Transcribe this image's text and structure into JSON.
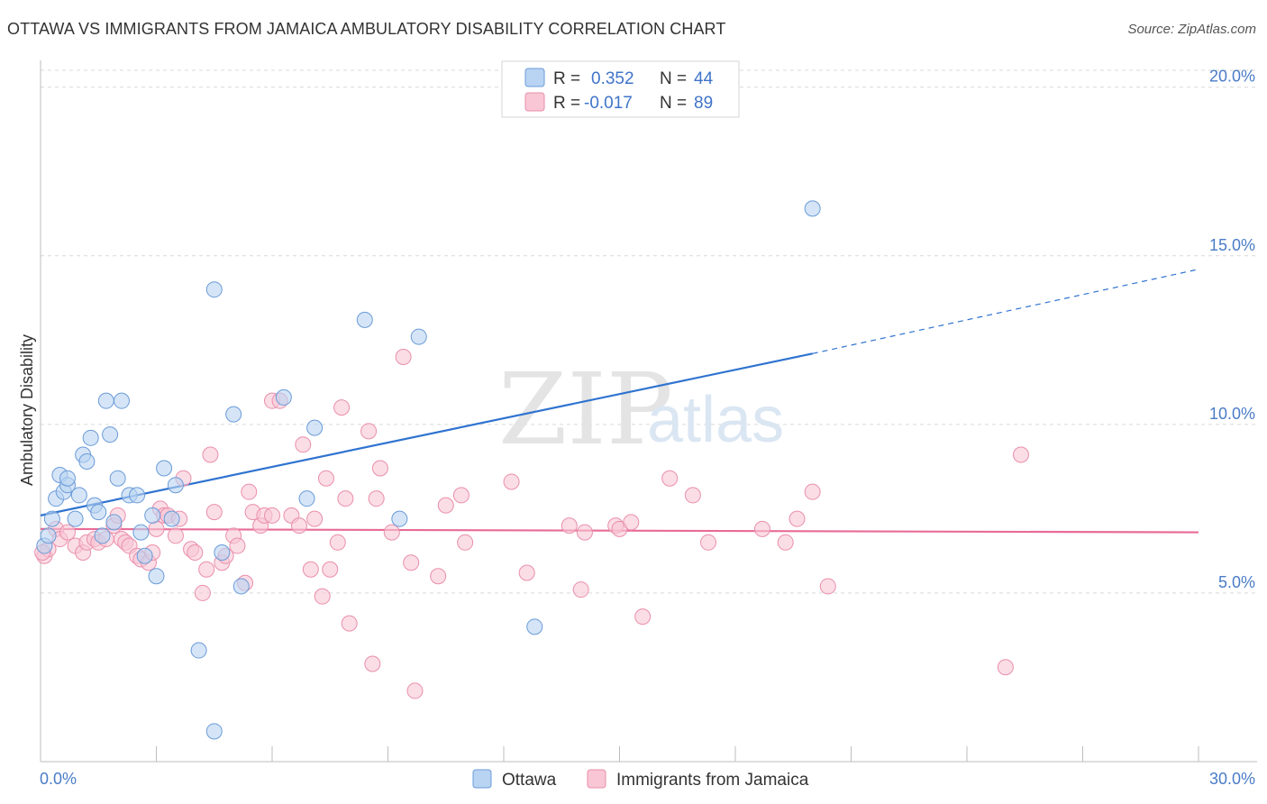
{
  "title": "OTTAWA VS IMMIGRANTS FROM JAMAICA AMBULATORY DISABILITY CORRELATION CHART",
  "source": "Source: ZipAtlas.com",
  "watermark": {
    "zip": "ZIP",
    "atlas": "atlas"
  },
  "colors": {
    "ottawa_fill": "#b9d3f2",
    "ottawa_stroke": "#6a9bd8",
    "ottawa_line": "#2f73d0",
    "jamaica_fill": "#f9c6d5",
    "jamaica_stroke": "#e98fab",
    "jamaica_line": "#e86b98",
    "grid": "#d9d9d9",
    "tick_text": "#4a7cc7"
  },
  "legend": {
    "rows": [
      {
        "r_label": "R =",
        "r_value": "0.352",
        "n_label": "N =",
        "n_value": "44"
      },
      {
        "r_label": "R =",
        "r_value": "-0.017",
        "n_label": "N =",
        "n_value": "89"
      }
    ]
  },
  "chart_data": {
    "type": "scatter",
    "title": "OTTAWA VS IMMIGRANTS FROM JAMAICA AMBULATORY DISABILITY CORRELATION CHART",
    "xlabel": "",
    "ylabel": "Ambulatory Disability",
    "xlim": [
      0,
      30
    ],
    "ylim": [
      0,
      20.5
    ],
    "x_tick_labels": [
      "0.0%",
      "30.0%"
    ],
    "y_ticks": [
      5,
      10,
      15,
      20
    ],
    "y_tick_labels": [
      "5.0%",
      "10.0%",
      "15.0%",
      "20.0%"
    ],
    "grid": true,
    "legend_position": "top-center",
    "series": [
      {
        "name": "Ottawa",
        "r": 0.352,
        "n": 44,
        "trend": {
          "x0": 0,
          "y0": 7.3,
          "x1": 20,
          "y1": 12.1,
          "dashed_to_x": 30,
          "dashed_to_y": 14.6
        },
        "points": [
          [
            0.1,
            6.4
          ],
          [
            0.3,
            7.2
          ],
          [
            0.4,
            7.8
          ],
          [
            0.5,
            8.5
          ],
          [
            0.6,
            8.0
          ],
          [
            0.7,
            8.2
          ],
          [
            0.7,
            8.4
          ],
          [
            1.0,
            7.9
          ],
          [
            0.9,
            7.2
          ],
          [
            1.1,
            9.1
          ],
          [
            1.2,
            8.9
          ],
          [
            1.3,
            9.6
          ],
          [
            1.4,
            7.6
          ],
          [
            1.5,
            7.4
          ],
          [
            1.6,
            6.7
          ],
          [
            1.7,
            10.7
          ],
          [
            1.8,
            9.7
          ],
          [
            1.9,
            7.1
          ],
          [
            2.0,
            8.4
          ],
          [
            2.1,
            10.7
          ],
          [
            2.3,
            7.9
          ],
          [
            2.5,
            7.9
          ],
          [
            2.6,
            6.8
          ],
          [
            2.7,
            6.1
          ],
          [
            2.9,
            7.3
          ],
          [
            3.0,
            5.5
          ],
          [
            3.2,
            8.7
          ],
          [
            3.4,
            7.2
          ],
          [
            3.5,
            8.2
          ],
          [
            4.1,
            3.3
          ],
          [
            4.5,
            14.0
          ],
          [
            4.5,
            0.9
          ],
          [
            4.7,
            6.2
          ],
          [
            5.0,
            10.3
          ],
          [
            5.2,
            5.2
          ],
          [
            6.3,
            10.8
          ],
          [
            6.9,
            7.8
          ],
          [
            7.1,
            9.9
          ],
          [
            8.4,
            13.1
          ],
          [
            9.3,
            7.2
          ],
          [
            9.8,
            12.6
          ],
          [
            12.8,
            4.0
          ],
          [
            20.0,
            16.4
          ],
          [
            0.2,
            6.7
          ]
        ]
      },
      {
        "name": "Immigrants from Jamaica",
        "r": -0.017,
        "n": 89,
        "trend": {
          "x0": 0,
          "y0": 6.9,
          "x1": 30,
          "y1": 6.8
        },
        "points": [
          [
            0.1,
            6.1
          ],
          [
            0.2,
            6.3
          ],
          [
            0.4,
            6.9
          ],
          [
            0.5,
            6.6
          ],
          [
            0.7,
            6.8
          ],
          [
            0.9,
            6.4
          ],
          [
            1.1,
            6.2
          ],
          [
            1.2,
            6.5
          ],
          [
            1.4,
            6.6
          ],
          [
            1.5,
            6.5
          ],
          [
            1.7,
            6.6
          ],
          [
            1.9,
            7.0
          ],
          [
            2.0,
            7.3
          ],
          [
            2.1,
            6.6
          ],
          [
            2.2,
            6.5
          ],
          [
            2.3,
            6.4
          ],
          [
            2.5,
            6.1
          ],
          [
            2.6,
            6.0
          ],
          [
            2.8,
            5.9
          ],
          [
            2.9,
            6.2
          ],
          [
            3.0,
            6.9
          ],
          [
            3.1,
            7.5
          ],
          [
            3.2,
            7.3
          ],
          [
            3.3,
            7.3
          ],
          [
            3.5,
            6.7
          ],
          [
            3.6,
            7.2
          ],
          [
            3.7,
            8.4
          ],
          [
            3.9,
            6.3
          ],
          [
            4.0,
            6.2
          ],
          [
            4.2,
            5.0
          ],
          [
            4.3,
            5.7
          ],
          [
            4.4,
            9.1
          ],
          [
            4.5,
            7.4
          ],
          [
            4.7,
            5.9
          ],
          [
            4.8,
            6.1
          ],
          [
            5.0,
            6.7
          ],
          [
            5.1,
            6.4
          ],
          [
            5.3,
            5.3
          ],
          [
            5.4,
            8.0
          ],
          [
            5.5,
            7.4
          ],
          [
            5.7,
            7.0
          ],
          [
            5.8,
            7.3
          ],
          [
            6.0,
            7.3
          ],
          [
            6.0,
            10.7
          ],
          [
            6.2,
            10.7
          ],
          [
            6.5,
            7.3
          ],
          [
            6.7,
            7.0
          ],
          [
            6.8,
            9.4
          ],
          [
            7.0,
            5.7
          ],
          [
            7.1,
            7.2
          ],
          [
            7.3,
            4.9
          ],
          [
            7.4,
            8.4
          ],
          [
            7.5,
            5.7
          ],
          [
            7.7,
            6.5
          ],
          [
            7.8,
            10.5
          ],
          [
            7.9,
            7.8
          ],
          [
            8.0,
            4.1
          ],
          [
            8.5,
            9.8
          ],
          [
            8.6,
            2.9
          ],
          [
            8.7,
            7.8
          ],
          [
            8.8,
            8.7
          ],
          [
            9.1,
            6.8
          ],
          [
            9.4,
            12.0
          ],
          [
            9.6,
            5.9
          ],
          [
            9.7,
            2.1
          ],
          [
            10.3,
            5.5
          ],
          [
            10.5,
            7.6
          ],
          [
            10.9,
            7.9
          ],
          [
            11.0,
            6.5
          ],
          [
            12.2,
            8.3
          ],
          [
            12.6,
            5.6
          ],
          [
            13.7,
            7.0
          ],
          [
            14.0,
            5.1
          ],
          [
            14.1,
            6.8
          ],
          [
            14.9,
            7.0
          ],
          [
            15.0,
            6.9
          ],
          [
            15.3,
            7.1
          ],
          [
            15.6,
            4.3
          ],
          [
            16.3,
            8.4
          ],
          [
            16.9,
            7.9
          ],
          [
            17.3,
            6.5
          ],
          [
            18.7,
            6.9
          ],
          [
            19.3,
            6.5
          ],
          [
            19.6,
            7.2
          ],
          [
            20.0,
            8.0
          ],
          [
            20.4,
            5.2
          ],
          [
            25.0,
            2.8
          ],
          [
            25.4,
            9.1
          ],
          [
            0.05,
            6.2
          ]
        ]
      }
    ]
  },
  "bottom_legend": [
    "Ottawa",
    "Immigrants from Jamaica"
  ]
}
